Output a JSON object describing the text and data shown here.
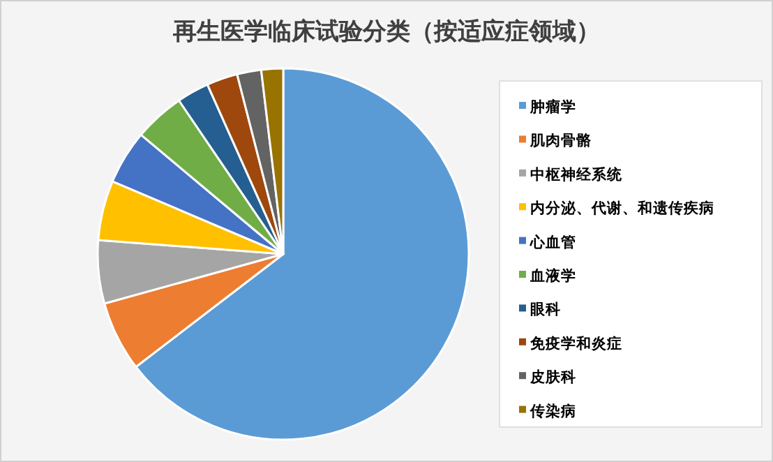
{
  "chart_data": {
    "type": "pie",
    "title": "再生医学临床试验分类（按适应症领域）",
    "categories": [
      "肿瘤学",
      "肌肉骨骼",
      "中枢神经系统",
      "内分泌、代谢、和遗传疾病",
      "心血管",
      "血液学",
      "眼科",
      "免疫学和炎症",
      "皮肤科",
      "传染病"
    ],
    "values": [
      64.6,
      6.1,
      5.5,
      5.2,
      4.7,
      4.4,
      2.8,
      2.7,
      2.1,
      1.9
    ],
    "colors": [
      "#5b9bd5",
      "#ed7d31",
      "#a5a5a5",
      "#ffc000",
      "#4472c4",
      "#70ad47",
      "#255e91",
      "#9e480e",
      "#636363",
      "#997300"
    ],
    "legend": "right"
  }
}
